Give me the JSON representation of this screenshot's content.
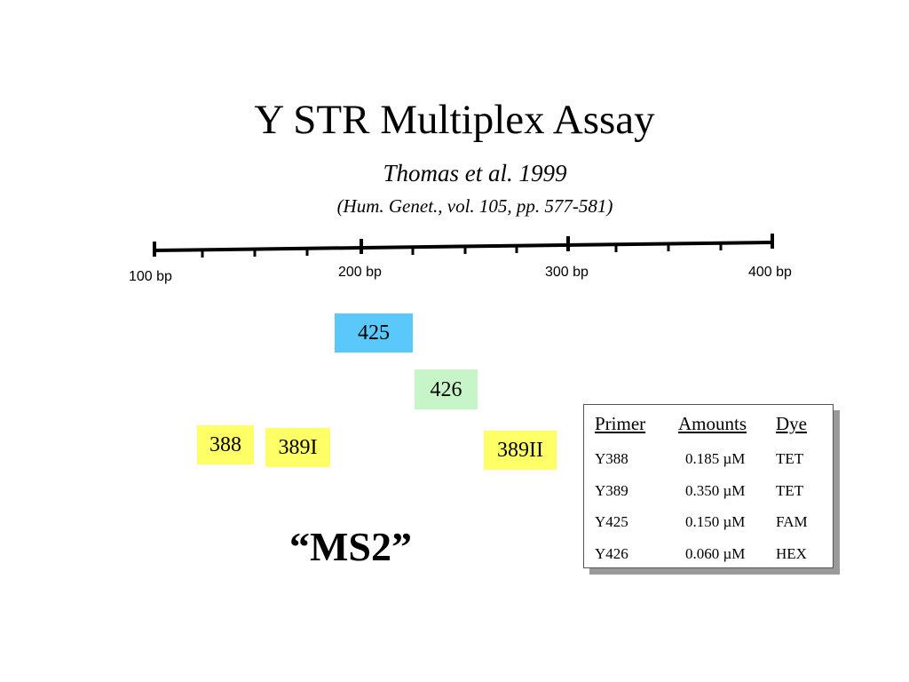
{
  "title": "Y STR Multiplex Assay",
  "subtitle": "Thomas et al. 1999",
  "citation": "(Hum. Genet., vol. 105, pp. 577-581)",
  "ruler": {
    "labels": [
      "100 bp",
      "200 bp",
      "300 bp",
      "400 bp"
    ]
  },
  "markers": {
    "m425": {
      "label": "425",
      "color": "#5ac8fa"
    },
    "m426": {
      "label": "426",
      "color": "#c8f5c8"
    },
    "m388": {
      "label": "388",
      "color": "#ffff66"
    },
    "m389i": {
      "label": "389I",
      "color": "#ffff66"
    },
    "m389ii": {
      "label": "389II",
      "color": "#ffff66"
    }
  },
  "multiplex_name": "“MS2”",
  "table": {
    "headers": {
      "primer": "Primer",
      "amounts": "Amounts",
      "dye": "Dye"
    },
    "rows": [
      {
        "primer": "Y388",
        "amount": "0.185 µM",
        "dye": "TET"
      },
      {
        "primer": "Y389",
        "amount": "0.350 µM",
        "dye": "TET"
      },
      {
        "primer": "Y425",
        "amount": "0.150 µM",
        "dye": "FAM"
      },
      {
        "primer": "Y426",
        "amount": "0.060 µM",
        "dye": "HEX"
      }
    ]
  }
}
